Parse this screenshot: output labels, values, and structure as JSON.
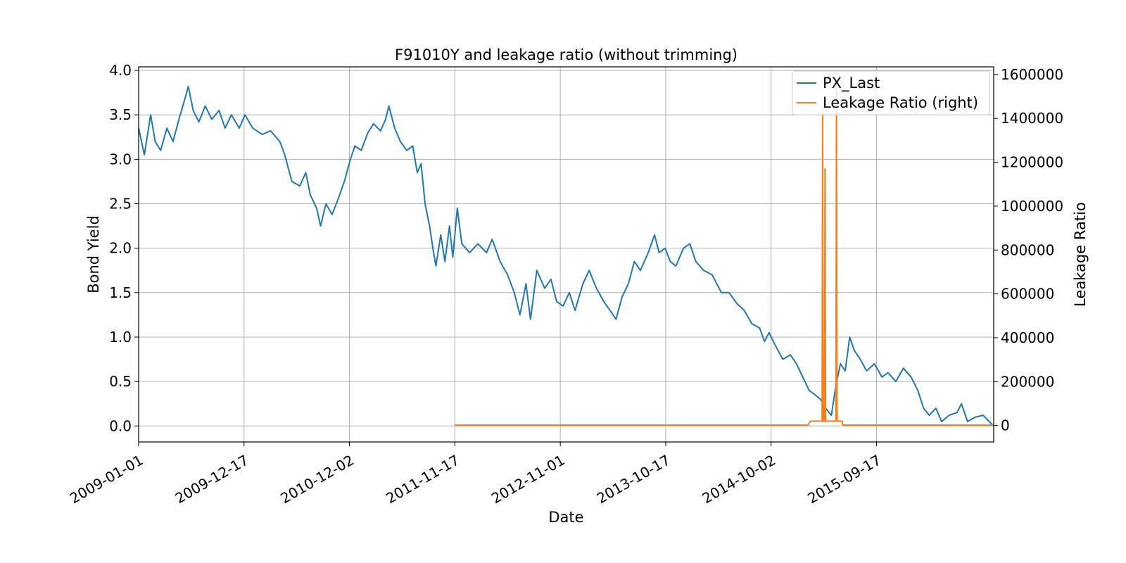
{
  "chart_data": {
    "type": "line",
    "title": "F91010Y and leakage ratio (without trimming)",
    "xlabel": "Date",
    "ylabel": "Bond Yield",
    "ylabel_right": "Leakage Ratio",
    "xlim": [
      "2009-01-01",
      "2016-10-10"
    ],
    "ylim": [
      -0.18,
      4.04
    ],
    "ylim_right": [
      -75000,
      1635000
    ],
    "grid": true,
    "legend_position": "top-right",
    "x_ticks": [
      "2009-01-01",
      "2009-12-17",
      "2010-12-02",
      "2011-11-17",
      "2012-11-01",
      "2013-10-17",
      "2014-10-02",
      "2015-09-17"
    ],
    "y_ticks": [
      "0.0",
      "0.5",
      "1.0",
      "1.5",
      "2.0",
      "2.5",
      "3.0",
      "3.5",
      "4.0"
    ],
    "y_ticks_right": [
      "0",
      "200000",
      "400000",
      "600000",
      "800000",
      "1000000",
      "1200000",
      "1400000",
      "1600000"
    ],
    "series": [
      {
        "name": "PX_Last",
        "axis": "left",
        "color": "#1f77b4",
        "points": [
          [
            "2009-01-01",
            3.35
          ],
          [
            "2009-01-20",
            3.05
          ],
          [
            "2009-02-10",
            3.5
          ],
          [
            "2009-02-25",
            3.2
          ],
          [
            "2009-03-15",
            3.1
          ],
          [
            "2009-04-05",
            3.35
          ],
          [
            "2009-04-25",
            3.2
          ],
          [
            "2009-05-15",
            3.45
          ],
          [
            "2009-06-01",
            3.65
          ],
          [
            "2009-06-15",
            3.82
          ],
          [
            "2009-07-01",
            3.55
          ],
          [
            "2009-07-20",
            3.42
          ],
          [
            "2009-08-10",
            3.6
          ],
          [
            "2009-09-01",
            3.45
          ],
          [
            "2009-09-25",
            3.55
          ],
          [
            "2009-10-15",
            3.35
          ],
          [
            "2009-11-05",
            3.5
          ],
          [
            "2009-12-01",
            3.35
          ],
          [
            "2009-12-20",
            3.5
          ],
          [
            "2010-01-15",
            3.35
          ],
          [
            "2010-02-15",
            3.28
          ],
          [
            "2010-03-15",
            3.32
          ],
          [
            "2010-04-15",
            3.2
          ],
          [
            "2010-05-01",
            3.05
          ],
          [
            "2010-05-25",
            2.75
          ],
          [
            "2010-06-20",
            2.7
          ],
          [
            "2010-07-10",
            2.85
          ],
          [
            "2010-07-25",
            2.6
          ],
          [
            "2010-08-15",
            2.45
          ],
          [
            "2010-08-28",
            2.25
          ],
          [
            "2010-09-15",
            2.5
          ],
          [
            "2010-10-05",
            2.38
          ],
          [
            "2010-10-25",
            2.55
          ],
          [
            "2010-11-15",
            2.75
          ],
          [
            "2010-12-05",
            3.0
          ],
          [
            "2010-12-20",
            3.15
          ],
          [
            "2011-01-10",
            3.1
          ],
          [
            "2011-02-01",
            3.3
          ],
          [
            "2011-02-20",
            3.4
          ],
          [
            "2011-03-15",
            3.32
          ],
          [
            "2011-04-01",
            3.45
          ],
          [
            "2011-04-12",
            3.6
          ],
          [
            "2011-05-01",
            3.35
          ],
          [
            "2011-05-20",
            3.2
          ],
          [
            "2011-06-10",
            3.1
          ],
          [
            "2011-06-30",
            3.15
          ],
          [
            "2011-07-15",
            2.85
          ],
          [
            "2011-07-28",
            2.95
          ],
          [
            "2011-08-10",
            2.5
          ],
          [
            "2011-08-25",
            2.25
          ],
          [
            "2011-09-05",
            2.0
          ],
          [
            "2011-09-15",
            1.8
          ],
          [
            "2011-10-01",
            2.15
          ],
          [
            "2011-10-15",
            1.85
          ],
          [
            "2011-10-30",
            2.25
          ],
          [
            "2011-11-10",
            1.9
          ],
          [
            "2011-11-25",
            2.45
          ],
          [
            "2011-12-10",
            2.05
          ],
          [
            "2012-01-05",
            1.95
          ],
          [
            "2012-02-01",
            2.05
          ],
          [
            "2012-03-01",
            1.95
          ],
          [
            "2012-03-20",
            2.1
          ],
          [
            "2012-04-15",
            1.85
          ],
          [
            "2012-05-10",
            1.7
          ],
          [
            "2012-06-01",
            1.5
          ],
          [
            "2012-06-20",
            1.25
          ],
          [
            "2012-07-10",
            1.6
          ],
          [
            "2012-07-25",
            1.2
          ],
          [
            "2012-08-15",
            1.75
          ],
          [
            "2012-09-10",
            1.55
          ],
          [
            "2012-10-01",
            1.65
          ],
          [
            "2012-10-20",
            1.4
          ],
          [
            "2012-11-10",
            1.35
          ],
          [
            "2012-12-01",
            1.5
          ],
          [
            "2012-12-20",
            1.3
          ],
          [
            "2013-01-15",
            1.6
          ],
          [
            "2013-02-05",
            1.75
          ],
          [
            "2013-03-01",
            1.55
          ],
          [
            "2013-03-25",
            1.4
          ],
          [
            "2013-04-15",
            1.3
          ],
          [
            "2013-05-05",
            1.2
          ],
          [
            "2013-05-25",
            1.45
          ],
          [
            "2013-06-15",
            1.6
          ],
          [
            "2013-07-05",
            1.85
          ],
          [
            "2013-07-25",
            1.75
          ],
          [
            "2013-08-20",
            1.95
          ],
          [
            "2013-09-10",
            2.15
          ],
          [
            "2013-09-25",
            1.95
          ],
          [
            "2013-10-15",
            2.0
          ],
          [
            "2013-11-01",
            1.85
          ],
          [
            "2013-11-20",
            1.8
          ],
          [
            "2013-12-15",
            2.0
          ],
          [
            "2014-01-05",
            2.05
          ],
          [
            "2014-01-25",
            1.85
          ],
          [
            "2014-02-20",
            1.75
          ],
          [
            "2014-03-20",
            1.7
          ],
          [
            "2014-04-20",
            1.5
          ],
          [
            "2014-05-15",
            1.5
          ],
          [
            "2014-06-10",
            1.38
          ],
          [
            "2014-07-05",
            1.3
          ],
          [
            "2014-07-30",
            1.15
          ],
          [
            "2014-08-25",
            1.1
          ],
          [
            "2014-09-10",
            0.95
          ],
          [
            "2014-09-25",
            1.05
          ],
          [
            "2014-10-20",
            0.88
          ],
          [
            "2014-11-10",
            0.75
          ],
          [
            "2014-12-05",
            0.8
          ],
          [
            "2014-12-25",
            0.7
          ],
          [
            "2015-01-15",
            0.55
          ],
          [
            "2015-02-05",
            0.4
          ],
          [
            "2015-02-25",
            0.35
          ],
          [
            "2015-03-15",
            0.3
          ],
          [
            "2015-04-01",
            0.2
          ],
          [
            "2015-04-20",
            0.12
          ],
          [
            "2015-05-05",
            0.45
          ],
          [
            "2015-05-20",
            0.7
          ],
          [
            "2015-06-05",
            0.62
          ],
          [
            "2015-06-20",
            1.0
          ],
          [
            "2015-07-05",
            0.85
          ],
          [
            "2015-07-25",
            0.75
          ],
          [
            "2015-08-15",
            0.62
          ],
          [
            "2015-09-10",
            0.7
          ],
          [
            "2015-10-05",
            0.55
          ],
          [
            "2015-10-25",
            0.6
          ],
          [
            "2015-11-20",
            0.5
          ],
          [
            "2015-12-15",
            0.65
          ],
          [
            "2016-01-10",
            0.55
          ],
          [
            "2016-02-01",
            0.4
          ],
          [
            "2016-02-20",
            0.2
          ],
          [
            "2016-03-10",
            0.12
          ],
          [
            "2016-04-01",
            0.2
          ],
          [
            "2016-04-20",
            0.05
          ],
          [
            "2016-05-15",
            0.12
          ],
          [
            "2016-06-10",
            0.15
          ],
          [
            "2016-06-25",
            0.25
          ],
          [
            "2016-07-15",
            0.05
          ],
          [
            "2016-08-10",
            0.1
          ],
          [
            "2016-09-05",
            0.12
          ],
          [
            "2016-09-25",
            0.05
          ],
          [
            "2016-10-10",
            0.0
          ]
        ]
      },
      {
        "name": "Leakage Ratio (right)",
        "axis": "right",
        "color": "#ff7f0e",
        "points": [
          [
            "2011-11-17",
            2000
          ],
          [
            "2015-02-01",
            2000
          ],
          [
            "2015-02-10",
            20000
          ],
          [
            "2015-03-20",
            20000
          ],
          [
            "2015-03-22",
            1420000
          ],
          [
            "2015-03-24",
            20000
          ],
          [
            "2015-03-28",
            20000
          ],
          [
            "2015-03-30",
            1170000
          ],
          [
            "2015-04-01",
            20000
          ],
          [
            "2015-05-05",
            20000
          ],
          [
            "2015-05-07",
            1550000
          ],
          [
            "2015-05-09",
            20000
          ],
          [
            "2015-05-25",
            20000
          ],
          [
            "2015-05-28",
            2000
          ],
          [
            "2016-10-10",
            2000
          ]
        ]
      }
    ]
  }
}
